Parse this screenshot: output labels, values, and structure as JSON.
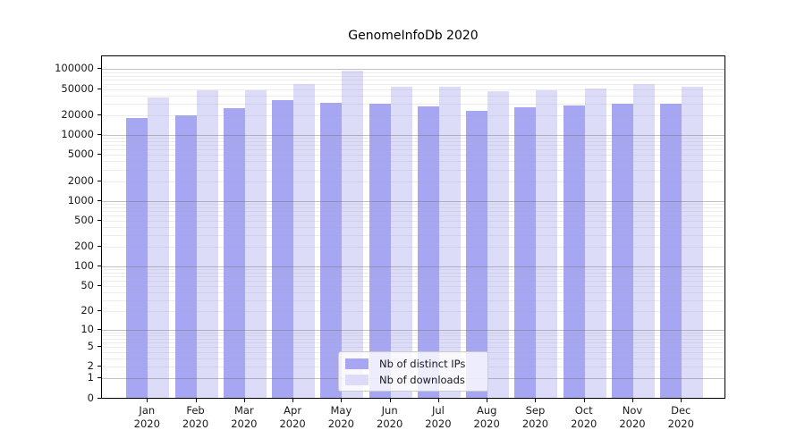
{
  "title": "GenomeInfoDb 2020",
  "chart_data": {
    "type": "bar",
    "title": "GenomeInfoDb 2020",
    "categories": [
      "Jan 2020",
      "Feb 2020",
      "Mar 2020",
      "Apr 2020",
      "May 2020",
      "Jun 2020",
      "Jul 2020",
      "Aug 2020",
      "Sep 2020",
      "Oct 2020",
      "Nov 2020",
      "Dec 2020"
    ],
    "series": [
      {
        "name": "Nb of distinct IPs",
        "color": "#a6a6f2",
        "values": [
          17900,
          20100,
          25300,
          33500,
          30800,
          29600,
          27500,
          23700,
          26600,
          28400,
          29900,
          29900
        ]
      },
      {
        "name": "Nb of downloads",
        "color": "#dcdcf8",
        "values": [
          37000,
          48200,
          48400,
          58800,
          94800,
          54700,
          54000,
          45800,
          47700,
          51400,
          59300,
          54700
        ]
      }
    ],
    "xlabel": "",
    "ylabel": "",
    "y_scale": "log10(1+v)",
    "y_tick_values": [
      0,
      1,
      2,
      5,
      10,
      20,
      50,
      100,
      200,
      500,
      1000,
      2000,
      5000,
      10000,
      20000,
      50000,
      100000
    ],
    "ylim": [
      0,
      130000
    ],
    "grid": "major and minor horizontal gridlines, drawn over bars",
    "legend_position": "lower center",
    "colors": {
      "spine": "#000000",
      "major_grid": "#c9c9c9",
      "minor_grid": "#ebebeb",
      "background": "#ffffff"
    }
  }
}
